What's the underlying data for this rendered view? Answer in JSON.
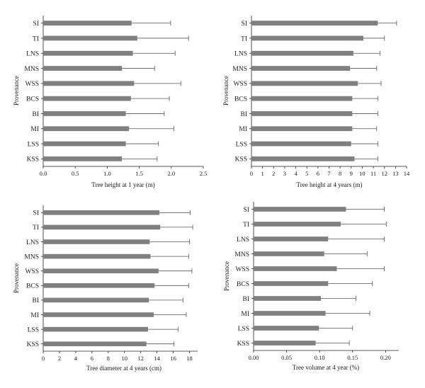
{
  "chart_data": [
    {
      "type": "bar",
      "orientation": "horizontal",
      "categories": [
        "SI",
        "TI",
        "LNS",
        "MNS",
        "WSS",
        "BCS",
        "BI",
        "MI",
        "LSS",
        "KSS"
      ],
      "values": [
        1.38,
        1.47,
        1.4,
        1.23,
        1.42,
        1.37,
        1.29,
        1.34,
        1.29,
        1.23
      ],
      "errors": [
        0.61,
        0.8,
        0.66,
        0.51,
        0.73,
        0.6,
        0.6,
        0.7,
        0.51,
        0.55
      ],
      "xlabel": "Tree height at 1 year (m)",
      "ylabel": "Provenance",
      "xlim": [
        0,
        2.5
      ],
      "xticks": [
        "0.0",
        "0.5",
        "1.0",
        "1.5",
        "2.0",
        "2.5"
      ],
      "grid": false,
      "bar_color": "#808080"
    },
    {
      "type": "bar",
      "orientation": "horizontal",
      "categories": [
        "SI",
        "TI",
        "LNS",
        "MNS",
        "WSS",
        "BCS",
        "BI",
        "MI",
        "LSS",
        "KSS"
      ],
      "values": [
        11.4,
        10.1,
        9.2,
        8.9,
        9.6,
        9.1,
        9.1,
        9.1,
        9.0,
        9.3
      ],
      "errors": [
        1.7,
        1.9,
        2.4,
        2.4,
        2.1,
        2.3,
        2.3,
        2.2,
        2.4,
        2.1
      ],
      "xlabel": "Tree height at 4 years (m)",
      "ylabel": "Provenance",
      "xlim": [
        0,
        14
      ],
      "xticks": [
        "0",
        "1",
        "2",
        "3",
        "4",
        "5",
        "6",
        "7",
        "8",
        "9",
        "10",
        "11",
        "12",
        "13",
        "14"
      ],
      "grid": false,
      "bar_color": "#808080"
    },
    {
      "type": "bar",
      "orientation": "horizontal",
      "categories": [
        "SI",
        "TI",
        "LNS",
        "MNS",
        "WSS",
        "BCS",
        "BI",
        "MI",
        "LSS",
        "KSS"
      ],
      "values": [
        14.3,
        14.4,
        13.1,
        13.2,
        14.2,
        13.7,
        13.0,
        13.6,
        12.9,
        12.7
      ],
      "errors": [
        3.8,
        4.0,
        4.9,
        4.7,
        4.1,
        4.2,
        4.2,
        4.0,
        3.7,
        3.4
      ],
      "xlabel": "Tree diameter at 4 years (cm)",
      "ylabel": "Provenance",
      "xlim": [
        0,
        19
      ],
      "xticks": [
        "0",
        "2",
        "4",
        "6",
        "8",
        "10",
        "12",
        "14",
        "16",
        "18"
      ],
      "grid": false,
      "bar_color": "#808080"
    },
    {
      "type": "bar",
      "orientation": "horizontal",
      "categories": [
        "SI",
        "TI",
        "LNS",
        "MNS",
        "WSS",
        "BCS",
        "BI",
        "MI",
        "LSS",
        "KSS"
      ],
      "values": [
        0.14,
        0.132,
        0.113,
        0.107,
        0.126,
        0.113,
        0.102,
        0.109,
        0.099,
        0.094
      ],
      "errors": [
        0.058,
        0.069,
        0.085,
        0.065,
        0.072,
        0.067,
        0.053,
        0.067,
        0.051,
        0.051
      ],
      "xlabel": "Tree volume at 4 year (%)",
      "ylabel": "Provenance",
      "xlim": [
        0,
        0.22
      ],
      "xticks": [
        "0.00",
        "0.05",
        "0.10",
        "0.15",
        "0.20"
      ],
      "grid": false,
      "bar_color": "#808080"
    }
  ]
}
